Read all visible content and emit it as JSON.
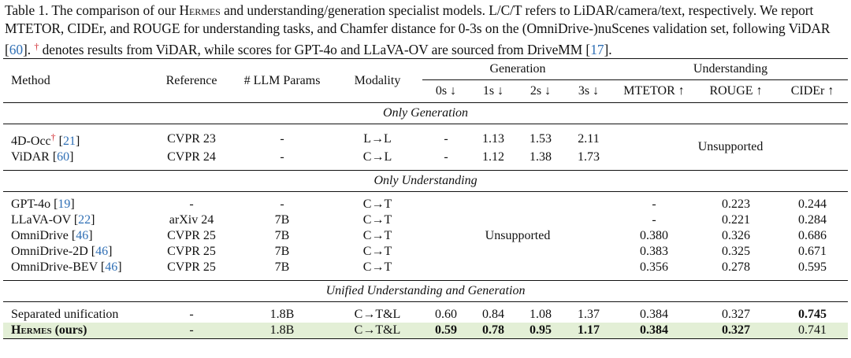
{
  "caption": {
    "p1": "Table 1. The comparison of our ",
    "hermes": "Hermes",
    "p2": " and understanding/generation specialist models. L/C/T refers to LiDAR/camera/text, respectively. We report MTETOR, CIDEr, and ROUGE for understanding tasks, and Chamfer distance for 0-3s on the (OmniDrive-)nuScenes validation set, following ViDAR [",
    "cite_vidar": "60",
    "p3": "]. ",
    "dagger": "†",
    "p4": " denotes results from ViDAR, while scores for GPT-4o and LLaVA-OV are sourced from DriveMM [",
    "cite_drivemm": "17",
    "p5": "]."
  },
  "table": {
    "headers": {
      "method": "Method",
      "reference": "Reference",
      "llm_params": "# LLM Params",
      "modality": "Modality",
      "generation": "Generation",
      "understanding": "Understanding",
      "gen_cols": [
        "0s ↓",
        "1s ↓",
        "2s ↓",
        "3s ↓"
      ],
      "und_cols": [
        "MTETOR ↑",
        "ROUGE ↑",
        "CIDEr ↑"
      ]
    },
    "sections": {
      "gen": "Only Generation",
      "und": "Only Understanding",
      "unified": "Unified Understanding and Generation"
    },
    "unsupported": "Unsupported",
    "gen_rows": [
      {
        "name": "4D-Occ",
        "dagger": "†",
        "cite": "21",
        "ref": "CVPR 23",
        "params": "-",
        "modality": "L→L",
        "g": [
          "-",
          "1.13",
          "1.53",
          "2.11"
        ]
      },
      {
        "name": "ViDAR",
        "dagger": "",
        "cite": "60",
        "ref": "CVPR 24",
        "params": "-",
        "modality": "C→L",
        "g": [
          "-",
          "1.12",
          "1.38",
          "1.73"
        ]
      }
    ],
    "und_rows": [
      {
        "name": "GPT-4o",
        "cite": "19",
        "ref": "-",
        "params": "-",
        "modality": "C→T",
        "u": [
          "-",
          "0.223",
          "0.244"
        ]
      },
      {
        "name": "LLaVA-OV",
        "cite": "22",
        "ref": "arXiv 24",
        "params": "7B",
        "modality": "C→T",
        "u": [
          "-",
          "0.221",
          "0.284"
        ]
      },
      {
        "name": "OmniDrive",
        "cite": "46",
        "ref": "CVPR 25",
        "params": "7B",
        "modality": "C→T",
        "u": [
          "0.380",
          "0.326",
          "0.686"
        ]
      },
      {
        "name": "OmniDrive-2D",
        "cite": "46",
        "ref": "CVPR 25",
        "params": "7B",
        "modality": "C→T",
        "u": [
          "0.383",
          "0.325",
          "0.671"
        ]
      },
      {
        "name": "OmniDrive-BEV",
        "cite": "46",
        "ref": "CVPR 25",
        "params": "7B",
        "modality": "C→T",
        "u": [
          "0.356",
          "0.278",
          "0.595"
        ]
      }
    ],
    "unified_rows": [
      {
        "name": "Separated unification",
        "ref": "-",
        "params": "1.8B",
        "modality": "C→T&L",
        "g": [
          "0.60",
          "0.84",
          "1.08",
          "1.37"
        ],
        "u": [
          "0.384",
          "0.327",
          "0.745"
        ]
      },
      {
        "name_sc": "Hermes",
        "name_rest": " (ours)",
        "ref": "-",
        "params": "1.8B",
        "modality": "C→T&L",
        "g": [
          "0.59",
          "0.78",
          "0.95",
          "1.17"
        ],
        "u": [
          "0.384",
          "0.327",
          "0.741"
        ]
      }
    ],
    "highlight_color": "#e3efd6"
  }
}
